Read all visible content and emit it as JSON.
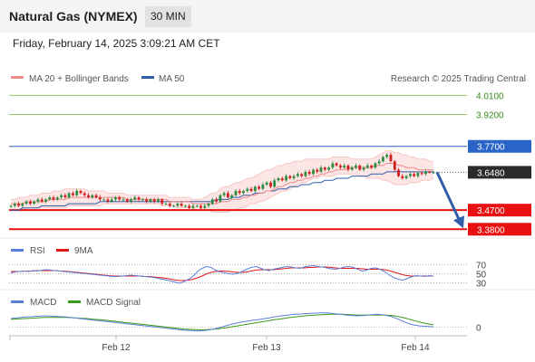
{
  "header": {
    "title": "Natural Gas (NYMEX)",
    "interval": "30 MIN",
    "datetime": "Friday, February 14, 2025 3:09:21 AM CET"
  },
  "legend": {
    "ma20": "MA 20 + Bollinger Bands",
    "ma50": "MA 50",
    "credit": "Research © 2025 Trading Central"
  },
  "colors": {
    "candle_up": "#2d8a3e",
    "candle_down": "#d01f1f",
    "ma20": "#f08a8a",
    "ma50": "#2f5fa8",
    "bollinger_fill": "#fbe1e1",
    "resistance": "#8fca6e",
    "pivot": "#2a64c8",
    "support": "#e81010",
    "arrow": "#2f5fa8",
    "rsi": "#5b7fd8",
    "rsi_ma": "#e01a1a",
    "macd": "#5b7fd8",
    "macd_signal": "#3a9a1a"
  },
  "chart_data": [
    {
      "type": "line",
      "name": "price",
      "x_ticks": [
        "Feb 12",
        "Feb 13",
        "Feb 14"
      ],
      "ylim": [
        3.36,
        4.05
      ],
      "levels": [
        {
          "value": 4.01,
          "label": "4.0100",
          "kind": "resistance"
        },
        {
          "value": 3.92,
          "label": "3.9200",
          "kind": "resistance"
        },
        {
          "value": 3.77,
          "label": "3.7700",
          "kind": "pivot"
        },
        {
          "value": 3.648,
          "label": "3.6480",
          "kind": "last"
        },
        {
          "value": 3.47,
          "label": "3.4700",
          "kind": "support"
        },
        {
          "value": 3.38,
          "label": "3.3800",
          "kind": "support"
        }
      ],
      "close": [
        3.49,
        3.5,
        3.49,
        3.5,
        3.51,
        3.5,
        3.51,
        3.52,
        3.51,
        3.52,
        3.53,
        3.52,
        3.53,
        3.54,
        3.53,
        3.55,
        3.54,
        3.56,
        3.55,
        3.54,
        3.53,
        3.54,
        3.53,
        3.52,
        3.52,
        3.51,
        3.52,
        3.53,
        3.52,
        3.52,
        3.51,
        3.52,
        3.53,
        3.52,
        3.52,
        3.51,
        3.52,
        3.51,
        3.52,
        3.5,
        3.5,
        3.49,
        3.49,
        3.5,
        3.49,
        3.49,
        3.48,
        3.49,
        3.49,
        3.48,
        3.49,
        3.5,
        3.52,
        3.51,
        3.54,
        3.55,
        3.53,
        3.54,
        3.56,
        3.55,
        3.56,
        3.57,
        3.56,
        3.58,
        3.57,
        3.59,
        3.6,
        3.58,
        3.61,
        3.62,
        3.61,
        3.63,
        3.62,
        3.63,
        3.64,
        3.63,
        3.65,
        3.64,
        3.66,
        3.65,
        3.67,
        3.66,
        3.67,
        3.69,
        3.68,
        3.67,
        3.68,
        3.66,
        3.67,
        3.68,
        3.66,
        3.67,
        3.68,
        3.67,
        3.69,
        3.7,
        3.72,
        3.73,
        3.7,
        3.66,
        3.63,
        3.62,
        3.63,
        3.64,
        3.63,
        3.645,
        3.64,
        3.65,
        3.648,
        3.648
      ],
      "ma20": [
        3.5,
        3.5,
        3.5,
        3.5,
        3.51,
        3.51,
        3.51,
        3.51,
        3.51,
        3.51,
        3.52,
        3.52,
        3.52,
        3.52,
        3.52,
        3.53,
        3.53,
        3.53,
        3.53,
        3.53,
        3.53,
        3.53,
        3.53,
        3.53,
        3.53,
        3.53,
        3.53,
        3.53,
        3.53,
        3.53,
        3.52,
        3.52,
        3.52,
        3.52,
        3.52,
        3.52,
        3.52,
        3.52,
        3.52,
        3.52,
        3.52,
        3.51,
        3.51,
        3.51,
        3.51,
        3.51,
        3.51,
        3.5,
        3.5,
        3.5,
        3.5,
        3.5,
        3.5,
        3.5,
        3.51,
        3.51,
        3.51,
        3.52,
        3.52,
        3.52,
        3.53,
        3.53,
        3.54,
        3.54,
        3.55,
        3.55,
        3.56,
        3.56,
        3.57,
        3.58,
        3.58,
        3.59,
        3.6,
        3.6,
        3.61,
        3.61,
        3.62,
        3.62,
        3.63,
        3.63,
        3.64,
        3.64,
        3.65,
        3.65,
        3.66,
        3.66,
        3.66,
        3.67,
        3.67,
        3.67,
        3.67,
        3.67,
        3.67,
        3.67,
        3.68,
        3.68,
        3.68,
        3.69,
        3.69,
        3.69,
        3.68,
        3.68,
        3.67,
        3.67,
        3.67,
        3.66,
        3.66,
        3.66,
        3.66,
        3.66
      ],
      "boll_upper": [
        3.52,
        3.52,
        3.53,
        3.53,
        3.53,
        3.54,
        3.54,
        3.54,
        3.55,
        3.55,
        3.55,
        3.56,
        3.56,
        3.56,
        3.57,
        3.57,
        3.57,
        3.57,
        3.57,
        3.57,
        3.56,
        3.56,
        3.56,
        3.56,
        3.56,
        3.55,
        3.55,
        3.55,
        3.55,
        3.55,
        3.54,
        3.54,
        3.54,
        3.54,
        3.54,
        3.54,
        3.54,
        3.54,
        3.54,
        3.54,
        3.54,
        3.53,
        3.53,
        3.53,
        3.53,
        3.53,
        3.53,
        3.52,
        3.52,
        3.52,
        3.53,
        3.54,
        3.55,
        3.55,
        3.57,
        3.58,
        3.58,
        3.59,
        3.6,
        3.6,
        3.61,
        3.62,
        3.62,
        3.63,
        3.64,
        3.65,
        3.66,
        3.66,
        3.67,
        3.68,
        3.68,
        3.69,
        3.69,
        3.7,
        3.7,
        3.7,
        3.71,
        3.71,
        3.71,
        3.71,
        3.71,
        3.71,
        3.71,
        3.72,
        3.72,
        3.72,
        3.72,
        3.72,
        3.71,
        3.71,
        3.71,
        3.71,
        3.71,
        3.71,
        3.72,
        3.73,
        3.74,
        3.75,
        3.75,
        3.74,
        3.74,
        3.73,
        3.73,
        3.72,
        3.72,
        3.71,
        3.71,
        3.71,
        3.7,
        3.7
      ],
      "boll_lower": [
        3.47,
        3.47,
        3.47,
        3.47,
        3.48,
        3.48,
        3.48,
        3.48,
        3.48,
        3.48,
        3.48,
        3.48,
        3.48,
        3.48,
        3.48,
        3.49,
        3.49,
        3.49,
        3.49,
        3.49,
        3.49,
        3.49,
        3.49,
        3.49,
        3.5,
        3.5,
        3.5,
        3.5,
        3.5,
        3.5,
        3.5,
        3.5,
        3.5,
        3.5,
        3.5,
        3.5,
        3.5,
        3.5,
        3.5,
        3.49,
        3.49,
        3.49,
        3.49,
        3.48,
        3.48,
        3.48,
        3.48,
        3.48,
        3.47,
        3.47,
        3.47,
        3.47,
        3.46,
        3.46,
        3.46,
        3.46,
        3.46,
        3.47,
        3.47,
        3.48,
        3.48,
        3.49,
        3.5,
        3.5,
        3.51,
        3.51,
        3.52,
        3.53,
        3.54,
        3.55,
        3.56,
        3.56,
        3.57,
        3.58,
        3.59,
        3.6,
        3.6,
        3.61,
        3.62,
        3.62,
        3.63,
        3.63,
        3.63,
        3.63,
        3.64,
        3.64,
        3.64,
        3.64,
        3.64,
        3.64,
        3.63,
        3.63,
        3.62,
        3.62,
        3.62,
        3.62,
        3.61,
        3.61,
        3.6,
        3.59,
        3.59,
        3.59,
        3.59,
        3.6,
        3.6,
        3.6,
        3.61,
        3.61,
        3.61,
        3.62
      ],
      "ma50": [
        3.47,
        3.47,
        3.47,
        3.48,
        3.48,
        3.48,
        3.48,
        3.48,
        3.49,
        3.49,
        3.49,
        3.49,
        3.49,
        3.49,
        3.49,
        3.5,
        3.5,
        3.5,
        3.5,
        3.5,
        3.5,
        3.5,
        3.5,
        3.51,
        3.51,
        3.51,
        3.51,
        3.51,
        3.51,
        3.51,
        3.51,
        3.51,
        3.51,
        3.51,
        3.51,
        3.51,
        3.51,
        3.51,
        3.51,
        3.51,
        3.51,
        3.51,
        3.51,
        3.51,
        3.51,
        3.51,
        3.51,
        3.51,
        3.51,
        3.51,
        3.51,
        3.51,
        3.51,
        3.52,
        3.52,
        3.52,
        3.52,
        3.53,
        3.53,
        3.53,
        3.54,
        3.54,
        3.54,
        3.55,
        3.55,
        3.55,
        3.56,
        3.56,
        3.56,
        3.57,
        3.57,
        3.57,
        3.58,
        3.58,
        3.58,
        3.59,
        3.59,
        3.59,
        3.6,
        3.6,
        3.6,
        3.61,
        3.61,
        3.61,
        3.62,
        3.62,
        3.62,
        3.62,
        3.63,
        3.63,
        3.63,
        3.63,
        3.63,
        3.64,
        3.64,
        3.64,
        3.64,
        3.65,
        3.65,
        3.65,
        3.65,
        3.65,
        3.65,
        3.65,
        3.65,
        3.65,
        3.65,
        3.65,
        3.65,
        3.65
      ],
      "forecast_arrow": {
        "from": 3.648,
        "to": 3.38
      }
    },
    {
      "type": "line",
      "name": "rsi",
      "legend": [
        "RSI",
        "9MA"
      ],
      "y_ticks": [
        {
          "value": 70,
          "label": "70"
        },
        {
          "value": 50,
          "label": "50"
        },
        {
          "value": 30,
          "label": "30"
        }
      ],
      "ylim": [
        25,
        75
      ],
      "rsi": [
        52,
        54,
        55,
        56,
        55,
        57,
        56,
        58,
        59,
        58,
        57,
        56,
        55,
        54,
        53,
        52,
        51,
        50,
        49,
        48,
        47,
        46,
        45,
        44,
        44,
        45,
        46,
        47,
        46,
        45,
        44,
        43,
        42,
        40,
        38,
        36,
        34,
        31,
        29,
        33,
        38,
        45,
        55,
        62,
        66,
        64,
        58,
        54,
        52,
        50,
        49,
        51,
        55,
        60,
        64,
        66,
        63,
        59,
        57,
        60,
        62,
        64,
        66,
        65,
        63,
        62,
        65,
        67,
        68,
        66,
        65,
        63,
        61,
        60,
        62,
        65,
        66,
        64,
        60,
        56,
        58,
        62,
        63,
        60,
        55,
        48,
        42,
        38,
        36,
        39,
        43,
        46,
        45,
        44,
        46,
        45
      ],
      "rsi_ma": [
        55,
        55,
        55,
        56,
        56,
        56,
        57,
        57,
        57,
        57,
        57,
        56,
        56,
        55,
        54,
        53,
        52,
        51,
        50,
        49,
        48,
        47,
        46,
        45,
        45,
        45,
        45,
        45,
        45,
        45,
        44,
        44,
        43,
        42,
        41,
        40,
        38,
        36,
        35,
        35,
        36,
        38,
        41,
        45,
        50,
        53,
        55,
        56,
        56,
        55,
        54,
        53,
        53,
        54,
        56,
        58,
        59,
        59,
        59,
        59,
        60,
        61,
        62,
        63,
        63,
        63,
        63,
        64,
        64,
        65,
        65,
        65,
        64,
        63,
        62,
        62,
        62,
        62,
        62,
        61,
        60,
        60,
        60,
        60,
        59,
        57,
        54,
        51,
        48,
        46,
        45,
        45,
        45,
        45,
        45,
        45
      ]
    },
    {
      "type": "line",
      "name": "macd",
      "legend": [
        "MACD",
        "MACD Signal"
      ],
      "y_ticks": [
        {
          "value": 0,
          "label": "0"
        }
      ],
      "ylim": [
        -0.02,
        0.05
      ],
      "macd": [
        0.022,
        0.024,
        0.026,
        0.027,
        0.028,
        0.029,
        0.028,
        0.027,
        0.026,
        0.024,
        0.022,
        0.02,
        0.018,
        0.016,
        0.014,
        0.012,
        0.01,
        0.008,
        0.006,
        0.004,
        0.002,
        0.0,
        -0.002,
        -0.004,
        -0.006,
        -0.008,
        -0.009,
        -0.01,
        -0.009,
        -0.006,
        -0.002,
        0.003,
        0.008,
        0.012,
        0.015,
        0.018,
        0.02,
        0.023,
        0.026,
        0.029,
        0.031,
        0.033,
        0.034,
        0.035,
        0.036,
        0.037,
        0.036,
        0.034,
        0.032,
        0.03,
        0.029,
        0.03,
        0.032,
        0.033,
        0.031,
        0.027,
        0.02,
        0.012,
        0.006,
        0.003,
        0.002,
        0.001
      ],
      "macd_signal": [
        0.02,
        0.021,
        0.022,
        0.023,
        0.024,
        0.025,
        0.025,
        0.025,
        0.025,
        0.024,
        0.023,
        0.022,
        0.02,
        0.019,
        0.017,
        0.015,
        0.013,
        0.011,
        0.009,
        0.007,
        0.005,
        0.003,
        0.001,
        -0.001,
        -0.003,
        -0.005,
        -0.006,
        -0.007,
        -0.007,
        -0.006,
        -0.004,
        -0.002,
        0.001,
        0.004,
        0.007,
        0.01,
        0.013,
        0.016,
        0.019,
        0.021,
        0.024,
        0.026,
        0.028,
        0.03,
        0.031,
        0.032,
        0.033,
        0.033,
        0.033,
        0.032,
        0.031,
        0.031,
        0.031,
        0.031,
        0.031,
        0.03,
        0.027,
        0.023,
        0.018,
        0.013,
        0.009,
        0.006
      ]
    }
  ]
}
